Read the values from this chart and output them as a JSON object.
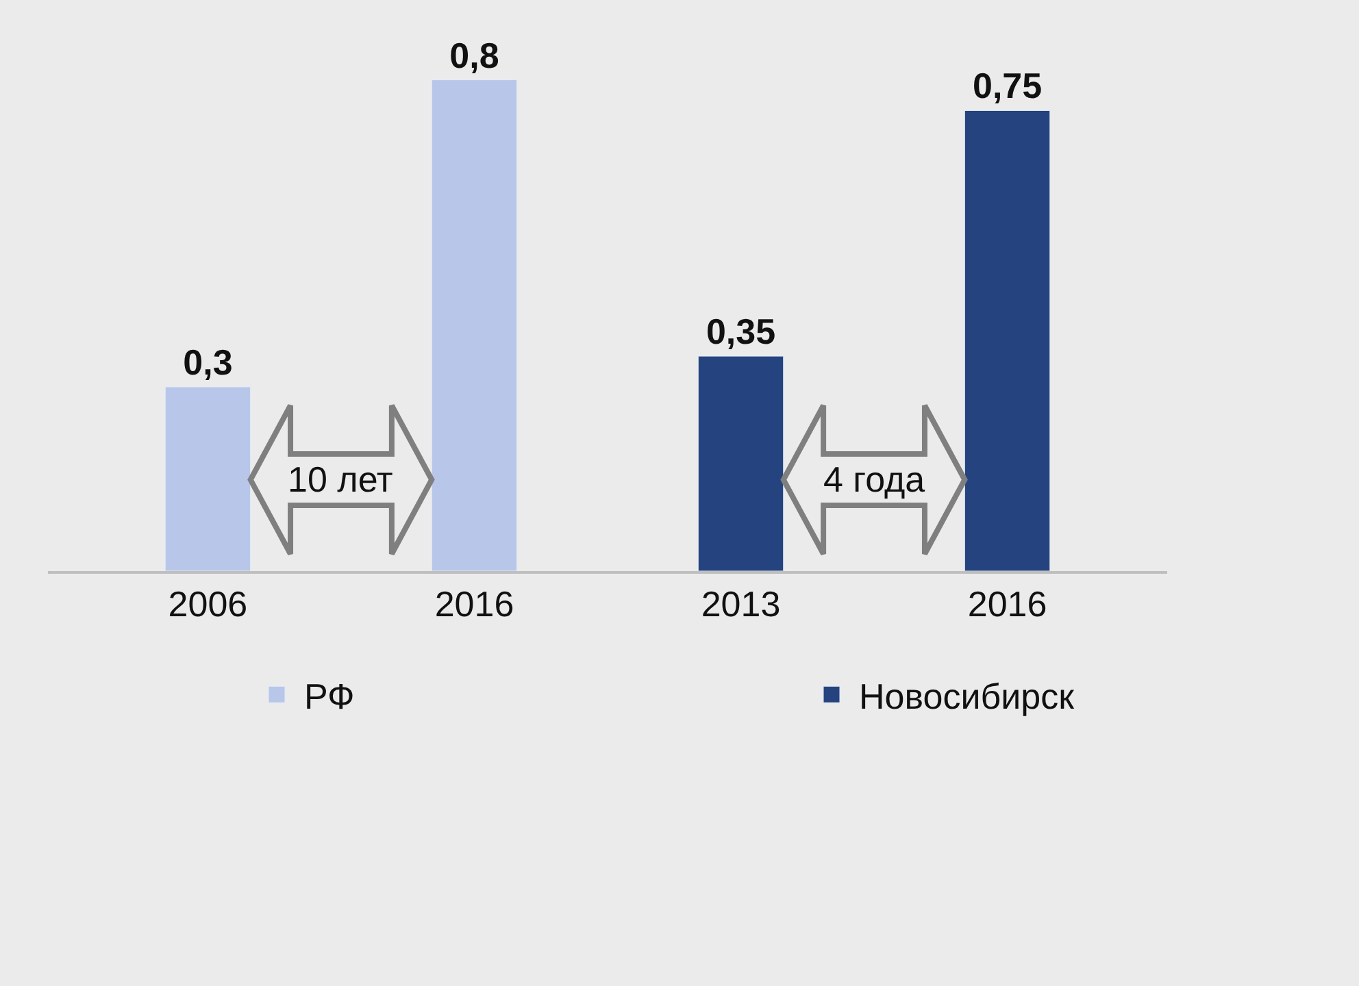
{
  "chart_data": {
    "type": "bar",
    "categories": [
      "2006",
      "2016",
      "2013",
      "2016"
    ],
    "series": [
      {
        "name": "РФ",
        "color": "#b8c6ea",
        "values": [
          0.3,
          0.8,
          null,
          null
        ],
        "value_labels": [
          "0,3",
          "0,8",
          null,
          null
        ]
      },
      {
        "name": "Новосибирск",
        "color": "#24437f",
        "values": [
          null,
          null,
          0.35,
          0.75
        ],
        "value_labels": [
          null,
          null,
          "0,35",
          "0,75"
        ]
      }
    ],
    "ylim": [
      0,
      0.93
    ],
    "tick_labels": "x",
    "grid": false,
    "legend": "bottom",
    "annotations": [
      "10 лет",
      "4 года"
    ]
  }
}
